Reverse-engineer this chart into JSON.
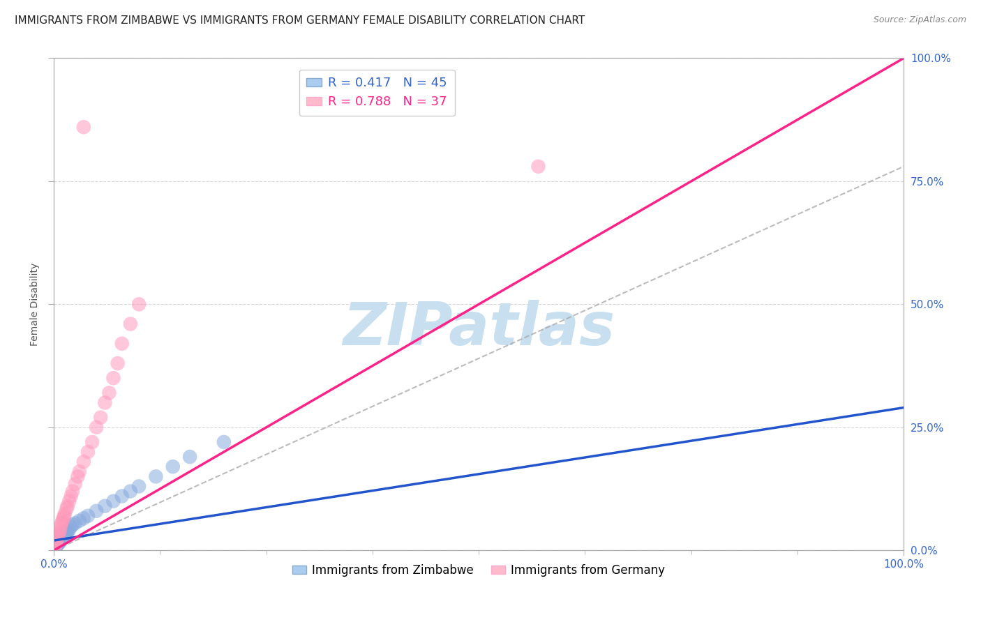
{
  "title": "IMMIGRANTS FROM ZIMBABWE VS IMMIGRANTS FROM GERMANY FEMALE DISABILITY CORRELATION CHART",
  "source_text": "Source: ZipAtlas.com",
  "ylabel": "Female Disability",
  "xlabel": "",
  "watermark": "ZIPatlas",
  "legend_labels_bottom": [
    "Immigrants from Zimbabwe",
    "Immigrants from Germany"
  ],
  "xlim": [
    0,
    1
  ],
  "ylim": [
    0,
    1
  ],
  "grid_color": "#cccccc",
  "background_color": "#ffffff",
  "scatter_blue_color": "#88aadd",
  "scatter_pink_color": "#ff99bb",
  "line_blue_color": "#2255cc",
  "line_pink_color": "#ff2288",
  "line_gray_color": "#aaaaaa",
  "r_zimbabwe": 0.417,
  "n_zimbabwe": 45,
  "r_germany": 0.788,
  "n_germany": 37,
  "title_fontsize": 11,
  "axis_label_fontsize": 10,
  "tick_fontsize": 11,
  "legend_fontsize": 13,
  "watermark_fontsize": 62,
  "watermark_color": "#c8dff0",
  "watermark_alpha": 0.6,
  "zimbabwe_x": [
    0.001,
    0.001,
    0.001,
    0.001,
    0.002,
    0.002,
    0.002,
    0.003,
    0.003,
    0.004,
    0.004,
    0.005,
    0.005,
    0.006,
    0.006,
    0.007,
    0.007,
    0.008,
    0.008,
    0.009,
    0.009,
    0.01,
    0.011,
    0.012,
    0.013,
    0.014,
    0.015,
    0.016,
    0.018,
    0.02,
    0.022,
    0.025,
    0.03,
    0.035,
    0.04,
    0.05,
    0.06,
    0.07,
    0.08,
    0.09,
    0.1,
    0.12,
    0.14,
    0.16,
    0.2
  ],
  "zimbabwe_y": [
    0.005,
    0.008,
    0.01,
    0.015,
    0.006,
    0.012,
    0.018,
    0.009,
    0.014,
    0.011,
    0.016,
    0.013,
    0.019,
    0.015,
    0.022,
    0.017,
    0.024,
    0.02,
    0.028,
    0.022,
    0.032,
    0.025,
    0.028,
    0.03,
    0.035,
    0.033,
    0.038,
    0.036,
    0.042,
    0.048,
    0.052,
    0.055,
    0.06,
    0.065,
    0.07,
    0.08,
    0.09,
    0.1,
    0.11,
    0.12,
    0.13,
    0.15,
    0.17,
    0.19,
    0.22
  ],
  "germany_x": [
    0.001,
    0.001,
    0.002,
    0.002,
    0.003,
    0.004,
    0.005,
    0.006,
    0.007,
    0.008,
    0.009,
    0.01,
    0.011,
    0.012,
    0.013,
    0.015,
    0.016,
    0.018,
    0.02,
    0.022,
    0.025,
    0.028,
    0.03,
    0.035,
    0.04,
    0.045,
    0.05,
    0.055,
    0.06,
    0.065,
    0.07,
    0.075,
    0.08,
    0.09,
    0.1,
    0.57,
    0.035
  ],
  "germany_y": [
    0.005,
    0.012,
    0.015,
    0.022,
    0.018,
    0.025,
    0.03,
    0.035,
    0.04,
    0.048,
    0.055,
    0.06,
    0.065,
    0.07,
    0.075,
    0.085,
    0.09,
    0.1,
    0.11,
    0.12,
    0.135,
    0.15,
    0.16,
    0.18,
    0.2,
    0.22,
    0.25,
    0.27,
    0.3,
    0.32,
    0.35,
    0.38,
    0.42,
    0.46,
    0.5,
    0.78,
    0.86
  ],
  "line_pink_x0": 0.0,
  "line_pink_y0": 0.0,
  "line_pink_x1": 1.0,
  "line_pink_y1": 1.0,
  "line_blue_x0": 0.0,
  "line_blue_y0": 0.02,
  "line_blue_x1": 1.0,
  "line_blue_y1": 0.29,
  "line_gray_x0": 0.0,
  "line_gray_y0": 0.0,
  "line_gray_x1": 1.0,
  "line_gray_y1": 0.78
}
